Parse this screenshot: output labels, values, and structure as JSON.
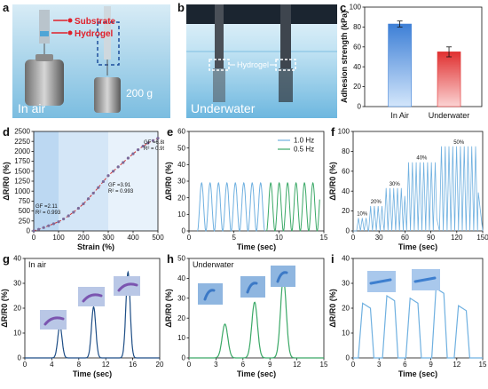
{
  "panel_letters": [
    "a",
    "b",
    "c",
    "d",
    "e",
    "f",
    "g",
    "h",
    "i"
  ],
  "photo_a": {
    "label_substrate": "Substrate",
    "label_hydrogel": "Hydrogel",
    "weight": "200 g",
    "caption": "In air"
  },
  "photo_b": {
    "label_hydrogel": "Hydrogel",
    "caption": "Underwater"
  },
  "colors": {
    "blue": "#3d7fd6",
    "red": "#e03030",
    "shade1": "#bcd8f2",
    "shade2": "#d4e6f7",
    "shade3": "#e8f2fb",
    "green": "#3aa866",
    "lightblue": "#6fb0e0",
    "navy": "#1e4e86"
  },
  "chart_data": [
    {
      "id": "c",
      "type": "bar",
      "categories": [
        "In Air",
        "Underwater"
      ],
      "values": [
        83,
        55
      ],
      "errors": [
        3,
        5
      ],
      "ylabel": "Adhesion strength (kPa)",
      "ylim": [
        0,
        100
      ],
      "yticks": [
        "0",
        "20",
        "40",
        "60",
        "80",
        "100"
      ],
      "xlabel": ""
    },
    {
      "id": "d",
      "type": "scatter",
      "xlabel": "Strain (%)",
      "ylabel": "ΔR/R0 (%)",
      "xlim": [
        0,
        500
      ],
      "ylim": [
        0,
        2500
      ],
      "xticks": [
        "0",
        "100",
        "200",
        "300",
        "400",
        "500"
      ],
      "yticks": [
        "0",
        "250",
        "500",
        "750",
        "1000",
        "1250",
        "1500",
        "1750",
        "2000",
        "2250",
        "2500"
      ],
      "x": [
        0,
        20,
        40,
        60,
        80,
        100,
        120,
        140,
        160,
        180,
        200,
        220,
        240,
        260,
        280,
        300,
        320,
        340,
        360,
        380,
        400,
        420,
        440,
        460,
        480,
        500
      ],
      "y": [
        0,
        40,
        85,
        130,
        180,
        230,
        300,
        380,
        470,
        570,
        680,
        810,
        950,
        1090,
        1240,
        1390,
        1500,
        1610,
        1720,
        1830,
        1940,
        2040,
        2130,
        2210,
        2270,
        2330
      ],
      "regions": [
        {
          "from": 0,
          "to": 100,
          "gf": "GF =2.11",
          "r2": "R² = 0.993"
        },
        {
          "from": 100,
          "to": 300,
          "gf": "GF =3.91",
          "r2": "R² = 0.993"
        },
        {
          "from": 300,
          "to": 500,
          "gf": "GF =6.88",
          "r2": "R² = 0.994"
        }
      ]
    },
    {
      "id": "e",
      "type": "line",
      "xlabel": "Time (sec)",
      "ylabel": "ΔR/R0 (%)",
      "xlim": [
        0,
        16
      ],
      "ylim": [
        0,
        60
      ],
      "xticks": [
        "0",
        "5",
        "10",
        "15"
      ],
      "yticks": [
        "0",
        "10",
        "20",
        "30",
        "40",
        "50",
        "60"
      ],
      "series": [
        {
          "name": "1.0 Hz",
          "color": "#6fb0e0",
          "start": 1.0,
          "end": 9.0,
          "period": 1.0,
          "amplitude": 29
        },
        {
          "name": "0.5 Hz",
          "color": "#3aa866",
          "start": 9.2,
          "end": 15.5,
          "period": 1.0,
          "amplitude": 29
        }
      ]
    },
    {
      "id": "f",
      "type": "line",
      "xlabel": "Time (sec)",
      "ylabel": "ΔR/R0 (%)",
      "xlim": [
        0,
        150
      ],
      "ylim": [
        0,
        100
      ],
      "xticks": [
        "0",
        "30",
        "60",
        "90",
        "120",
        "150"
      ],
      "yticks": [
        "0",
        "20",
        "40",
        "60",
        "80",
        "100"
      ],
      "series": [
        {
          "name": "",
          "color": "#6fb0e0"
        }
      ],
      "groups": [
        {
          "label": "10%",
          "start": 4,
          "end": 17,
          "amplitude": 13
        },
        {
          "label": "20%",
          "start": 18,
          "end": 35,
          "amplitude": 25
        },
        {
          "label": "30%",
          "start": 36,
          "end": 60,
          "amplitude": 43
        },
        {
          "label": "40%",
          "start": 62,
          "end": 97,
          "amplitude": 69
        },
        {
          "label": "50%",
          "start": 100,
          "end": 145,
          "amplitude": 85
        }
      ]
    },
    {
      "id": "g",
      "type": "line",
      "title": "In air",
      "xlabel": "Time (sec)",
      "ylabel": "ΔR/R0 (%)",
      "xlim": [
        0,
        20
      ],
      "ylim": [
        0,
        40
      ],
      "xticks": [
        "0",
        "4",
        "8",
        "12",
        "16",
        "20"
      ],
      "yticks": [
        "0",
        "10",
        "20",
        "30",
        "40"
      ],
      "series": [
        {
          "name": "",
          "color": "#1e4e86"
        }
      ],
      "peaks": [
        {
          "t": 5.2,
          "v": 13
        },
        {
          "t": 10.2,
          "v": 20.5
        },
        {
          "t": 15.3,
          "v": 34.5
        }
      ]
    },
    {
      "id": "h",
      "type": "line",
      "title": "Underwater",
      "xlabel": "Time (sec)",
      "ylabel": "ΔR/R0 (%)",
      "xlim": [
        0,
        15
      ],
      "ylim": [
        0,
        50
      ],
      "xticks": [
        "0",
        "3",
        "6",
        "9",
        "12",
        "15"
      ],
      "yticks": [
        "0",
        "10",
        "20",
        "30",
        "40",
        "50"
      ],
      "series": [
        {
          "name": "",
          "color": "#3aa866"
        }
      ],
      "peaks": [
        {
          "t": 4.0,
          "v": 17
        },
        {
          "t": 7.3,
          "v": 28
        },
        {
          "t": 10.5,
          "v": 40
        }
      ]
    },
    {
      "id": "i",
      "type": "line",
      "xlabel": "Time (sec)",
      "ylabel": "ΔR/R0 (%)",
      "xlim": [
        0,
        15
      ],
      "ylim": [
        0,
        40
      ],
      "xticks": [
        "0",
        "3",
        "6",
        "9",
        "12",
        "15"
      ],
      "yticks": [
        "0",
        "10",
        "20",
        "30",
        "40"
      ],
      "series": [
        {
          "name": "",
          "color": "#6fb0e0"
        }
      ],
      "plateaus": [
        {
          "t": 1.5,
          "v": 22
        },
        {
          "t": 4.3,
          "v": 25
        },
        {
          "t": 7.0,
          "v": 24
        },
        {
          "t": 10.0,
          "v": 28
        },
        {
          "t": 12.6,
          "v": 21
        }
      ]
    }
  ]
}
